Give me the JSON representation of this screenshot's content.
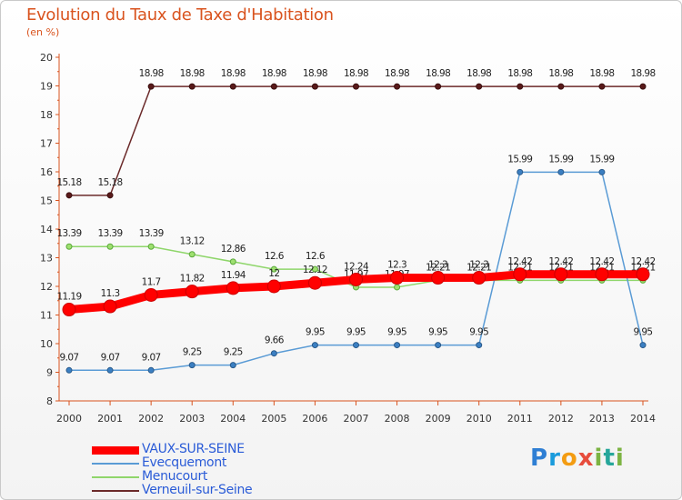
{
  "title": "Evolution du Taux de Taxe d'Habitation",
  "subtitle": "(en %)",
  "brand": "Proxiti",
  "chart_data": {
    "type": "line",
    "title": "Evolution du Taux de Taxe d'Habitation",
    "ylabel": "(en %)",
    "xlabel": "",
    "x": [
      "2000",
      "2001",
      "2002",
      "2003",
      "2004",
      "2005",
      "2006",
      "2007",
      "2008",
      "2009",
      "2010",
      "2011",
      "2012",
      "2013",
      "2014"
    ],
    "ylim": [
      8,
      20
    ],
    "yticks": [
      "8",
      "9",
      "10",
      "11",
      "12",
      "13",
      "14",
      "15",
      "16",
      "17",
      "18",
      "19",
      "20"
    ],
    "grid": false,
    "legend_position": "bottom-left",
    "series": [
      {
        "name": "Verneuil-sur-Seine",
        "color": "#6b2a2a",
        "values": [
          15.18,
          15.18,
          18.98,
          18.98,
          18.98,
          18.98,
          18.98,
          18.98,
          18.98,
          18.98,
          18.98,
          18.98,
          18.98,
          18.98,
          18.98
        ],
        "labels": [
          "15.18",
          "15.18",
          "18.98",
          "18.98",
          "18.98",
          "18.98",
          "18.98",
          "18.98",
          "18.98",
          "18.98",
          "18.98",
          "18.98",
          "18.98",
          "18.98",
          "18.98"
        ]
      },
      {
        "name": "Menucourt",
        "color": "#8fd66b",
        "values": [
          13.39,
          13.39,
          13.39,
          13.12,
          12.86,
          12.6,
          12.6,
          11.97,
          11.97,
          12.21,
          12.21,
          12.21,
          12.21,
          12.21,
          12.21
        ],
        "labels": [
          "13.39",
          "13.39",
          "13.39",
          "13.12",
          "12.86",
          "12.6",
          "12.6",
          "11.97",
          "11.97",
          "12.21",
          "12.21",
          "12.21",
          "12.21",
          "12.21",
          "12.21"
        ]
      },
      {
        "name": "Evecquemont",
        "color": "#5a9bd5",
        "values": [
          9.07,
          9.07,
          9.07,
          9.25,
          9.25,
          9.66,
          9.95,
          9.95,
          9.95,
          9.95,
          9.95,
          15.99,
          15.99,
          15.99,
          9.95
        ],
        "labels": [
          "9.07",
          "9.07",
          "9.07",
          "9.25",
          "9.25",
          "9.66",
          "9.95",
          "9.95",
          "9.95",
          "9.95",
          "9.95",
          "15.99",
          "15.99",
          "15.99",
          "9.95"
        ]
      },
      {
        "name": "VAUX-SUR-SEINE",
        "color": "#ff0000",
        "values": [
          11.19,
          11.3,
          11.7,
          11.82,
          11.94,
          12,
          12.12,
          12.24,
          12.3,
          12.3,
          12.3,
          12.42,
          12.42,
          12.42,
          12.42
        ],
        "labels": [
          "11.19",
          "11.3",
          "11.7",
          "11.82",
          "11.94",
          "12",
          "12.12",
          "12.24",
          "12.3",
          "12.3",
          "12.3",
          "12.42",
          "12.42",
          "12.42",
          "12.42"
        ]
      }
    ],
    "legend": [
      "VAUX-SUR-SEINE",
      "Evecquemont",
      "Menucourt",
      "Verneuil-sur-Seine"
    ]
  }
}
